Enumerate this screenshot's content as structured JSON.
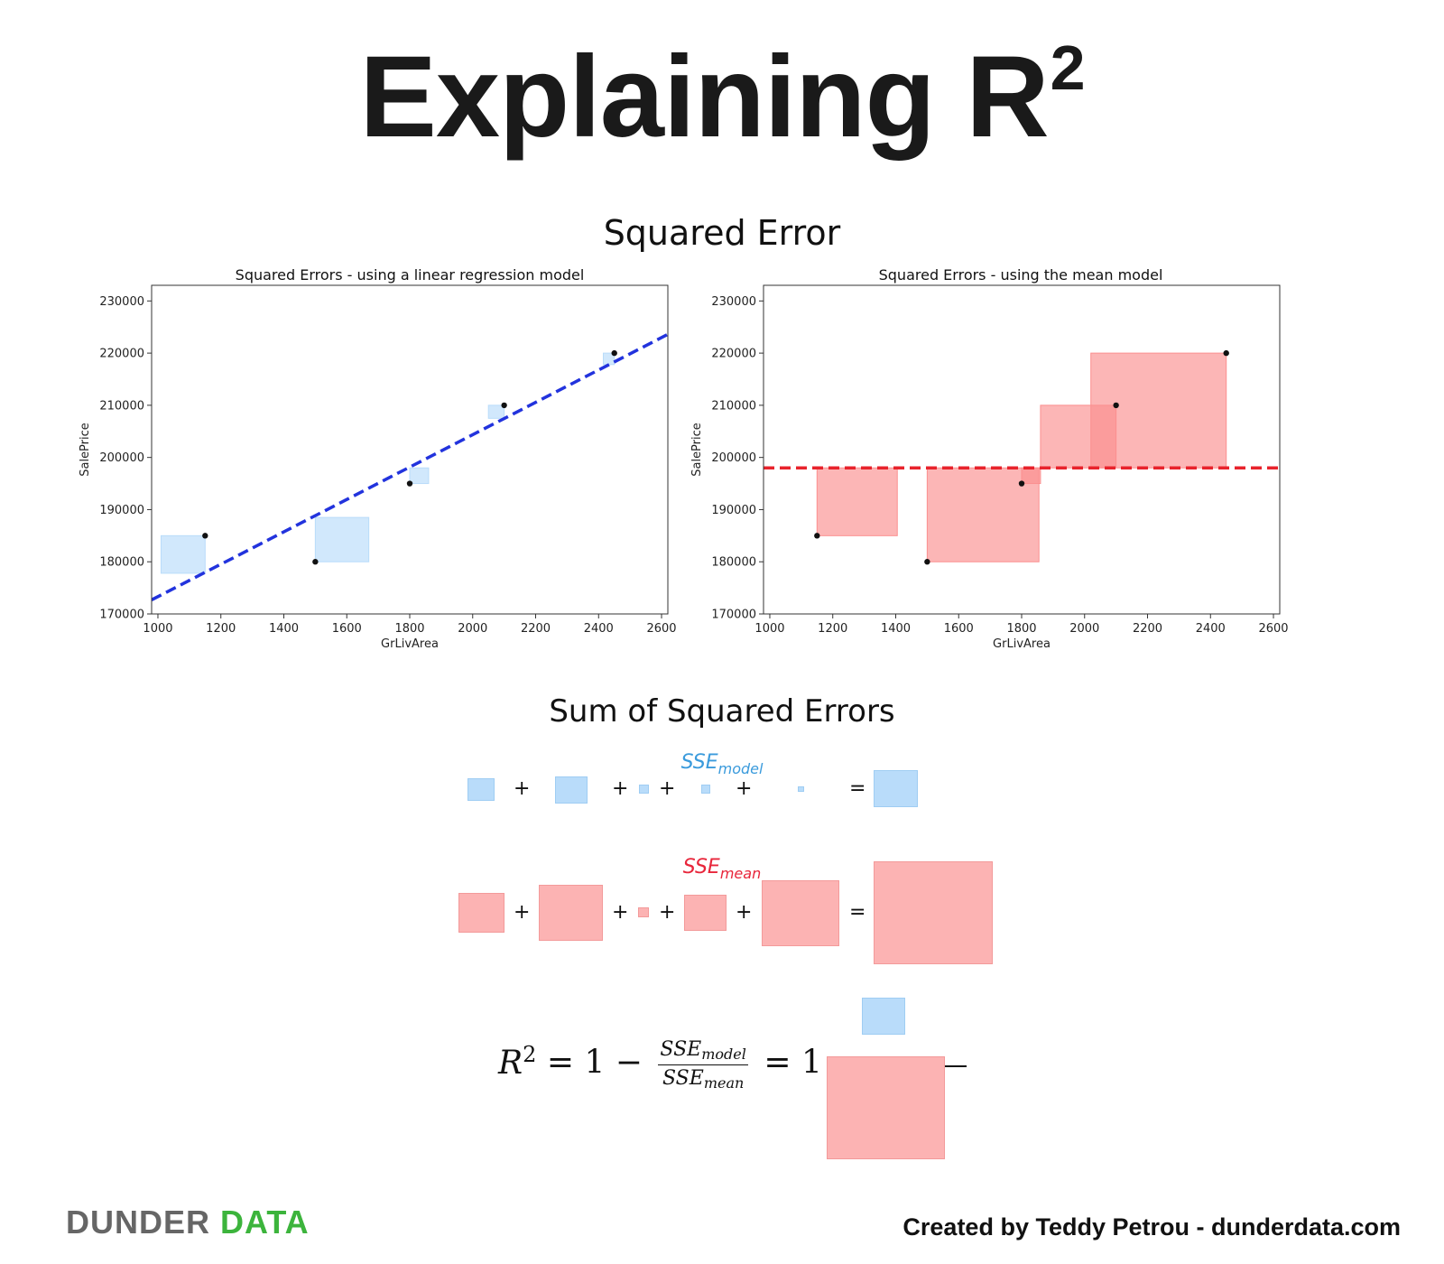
{
  "title": {
    "text": "Explaining R",
    "superscript": "2"
  },
  "section1_title": "Squared Error",
  "section2_title": "Sum of Squared Errors",
  "chart_data": [
    {
      "type": "scatter",
      "title": "Squared Errors - using a linear regression model",
      "xlabel": "GrLivArea",
      "ylabel": "SalePrice",
      "xlim": [
        980,
        2620
      ],
      "ylim": [
        170000,
        233000
      ],
      "xticks": [
        1000,
        1200,
        1400,
        1600,
        1800,
        2000,
        2200,
        2400,
        2600
      ],
      "yticks": [
        170000,
        180000,
        190000,
        200000,
        210000,
        220000,
        230000
      ],
      "points": [
        {
          "x": 1150,
          "y": 185000
        },
        {
          "x": 1500,
          "y": 180000
        },
        {
          "x": 1800,
          "y": 195000
        },
        {
          "x": 2100,
          "y": 210000
        },
        {
          "x": 2450,
          "y": 220000
        }
      ],
      "line": {
        "style": "dashed",
        "color": "#2233dd",
        "x": [
          980,
          2620
        ],
        "y": [
          172700,
          223600
        ]
      },
      "squares": {
        "color": "#b9dcfa",
        "items": [
          {
            "x0": 1010,
            "x1": 1150,
            "y0": 177800,
            "y1": 185000
          },
          {
            "x0": 1500,
            "x1": 1670,
            "y0": 180000,
            "y1": 188500
          },
          {
            "x0": 1800,
            "x1": 1860,
            "y0": 195000,
            "y1": 198000
          },
          {
            "x0": 2050,
            "x1": 2100,
            "y0": 207500,
            "y1": 210000
          },
          {
            "x0": 2415,
            "x1": 2450,
            "y0": 217800,
            "y1": 220000
          }
        ]
      }
    },
    {
      "type": "scatter",
      "title": "Squared Errors - using the mean model",
      "xlabel": "GrLivArea",
      "ylabel": "SalePrice",
      "xlim": [
        980,
        2620
      ],
      "ylim": [
        170000,
        233000
      ],
      "xticks": [
        1000,
        1200,
        1400,
        1600,
        1800,
        2000,
        2200,
        2400,
        2600
      ],
      "yticks": [
        170000,
        180000,
        190000,
        200000,
        210000,
        220000,
        230000
      ],
      "points": [
        {
          "x": 1150,
          "y": 185000
        },
        {
          "x": 1500,
          "y": 180000
        },
        {
          "x": 1800,
          "y": 195000
        },
        {
          "x": 2100,
          "y": 210000
        },
        {
          "x": 2450,
          "y": 220000
        }
      ],
      "line": {
        "style": "dashed",
        "color": "#e8232c",
        "x": [
          980,
          2620
        ],
        "y": [
          198000,
          198000
        ]
      },
      "squares": {
        "color": "#fb8f8f",
        "items": [
          {
            "x0": 1150,
            "x1": 1405,
            "y0": 185000,
            "y1": 198000
          },
          {
            "x0": 1500,
            "x1": 1855,
            "y0": 180000,
            "y1": 198000
          },
          {
            "x0": 1800,
            "x1": 1860,
            "y0": 195000,
            "y1": 198000
          },
          {
            "x0": 1860,
            "x1": 2100,
            "y0": 198000,
            "y1": 210000
          },
          {
            "x0": 2020,
            "x1": 2450,
            "y0": 198000,
            "y1": 220000
          }
        ]
      }
    }
  ],
  "sse_model_label": {
    "base": "SSE",
    "sub": "model"
  },
  "sse_mean_label": {
    "base": "SSE",
    "sub": "mean"
  },
  "operators": {
    "plus": "+",
    "equals": "="
  },
  "formula": {
    "lhs": "R",
    "lhs_sup": "2",
    "equals_one_minus": "= 1 −",
    "num_base": "SSE",
    "num_sub": "model",
    "den_base": "SSE",
    "den_sub": "mean",
    "equals_one_minus_2": "= 1 −"
  },
  "footer": {
    "brand_dunder": "DUNDER",
    "brand_data": "DATA",
    "credit": "Created by Teddy Petrou - dunderdata.com"
  }
}
